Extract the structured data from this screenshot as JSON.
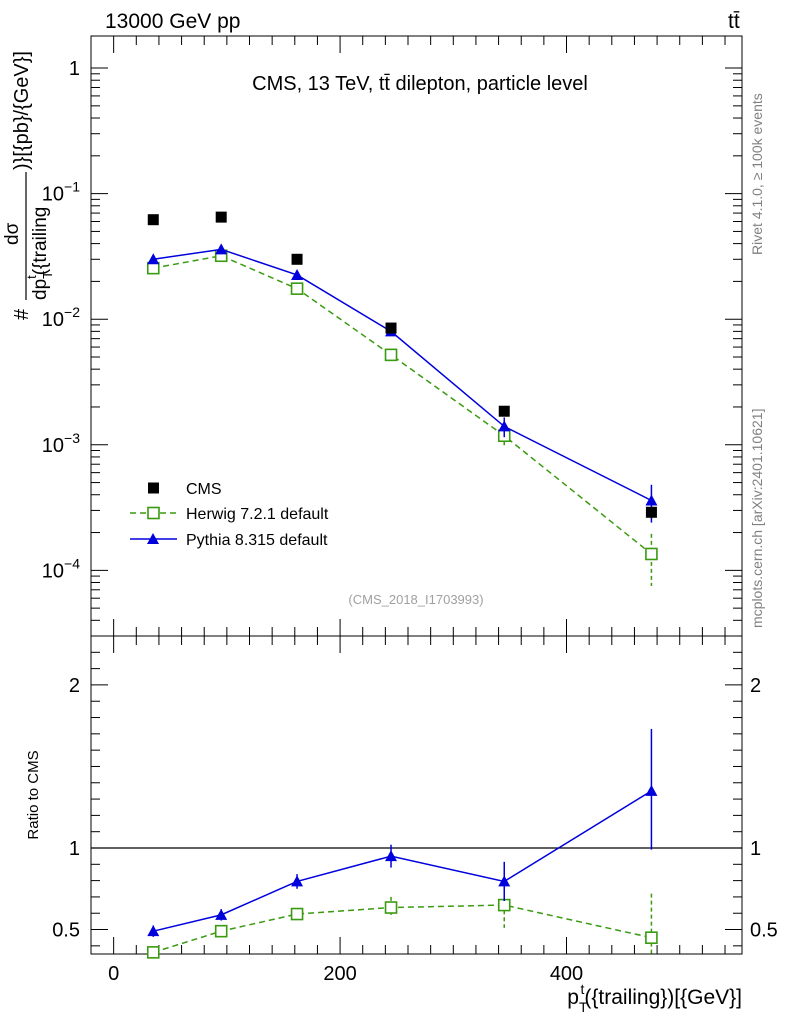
{
  "header": {
    "left": "13000 GeV pp",
    "right": "tt̄"
  },
  "side_text": {
    "rivet": "Rivet 4.1.0, ≥ 100k events",
    "url": "mcplots.cern.ch [arXiv:2401.10621]"
  },
  "colors": {
    "cms": "#000000",
    "herwig": "#3a9a10",
    "pythia": "#0000dd",
    "reference": "#808080"
  },
  "chart_data": [
    {
      "type": "scatter",
      "panel": "main",
      "title": "CMS, 13 TeV, tt̄ dilepton, particle level",
      "reference": "(CMS_2018_I1703993)",
      "ylabel": "#(dσ/dp_T^t({trailing}))[{pb}/{GeV}]",
      "ylabel_parts": {
        "numerator": "dσ",
        "denominator": "dp",
        "denominator_sup": "t",
        "denominator_sub": "T",
        "denominator_tail": "({trailing",
        "prefix": "#",
        "suffix": ")}[{pb}/{GeV}]"
      },
      "xlim": [
        -20,
        555
      ],
      "ylim": [
        3e-05,
        1.8
      ],
      "yscale": "log",
      "y_ticks": [
        {
          "value": 0.0001,
          "base": "10",
          "exp": "−4"
        },
        {
          "value": 0.001,
          "base": "10",
          "exp": "−3"
        },
        {
          "value": 0.01,
          "base": "10",
          "exp": "−2"
        },
        {
          "value": 0.1,
          "base": "10",
          "exp": "−1"
        },
        {
          "value": 1,
          "base": "1",
          "exp": ""
        }
      ],
      "x": [
        35,
        95,
        162,
        245,
        345,
        475
      ],
      "series": [
        {
          "name": "CMS",
          "style": "square",
          "values": [
            0.062,
            0.065,
            0.03,
            0.0085,
            0.00185,
            0.00029
          ],
          "err": [
            0.002,
            0.002,
            0.001,
            0.0003,
            0.0001,
            3e-05
          ]
        },
        {
          "name": "Herwig 7.2.1 default",
          "style": "open-square-dashed",
          "values": [
            0.0255,
            0.032,
            0.0175,
            0.0052,
            0.00118,
            0.000135
          ],
          "err": [
            0.0008,
            0.001,
            0.0006,
            0.0002,
            0.0002,
            6e-05
          ]
        },
        {
          "name": "Pythia 8.315 default",
          "style": "triangle-solid",
          "values": [
            0.03,
            0.036,
            0.0225,
            0.008,
            0.0014,
            0.00036
          ],
          "err": [
            0.001,
            0.001,
            0.0008,
            0.0003,
            0.00025,
            0.00012
          ]
        }
      ],
      "legend": {
        "placement": "bottom-left",
        "entries": [
          "CMS",
          "Herwig 7.2.1 default",
          "Pythia 8.315 default"
        ]
      }
    },
    {
      "type": "line",
      "panel": "ratio",
      "ylabel": "Ratio to CMS",
      "xlabel": "p_T^t({trailing})[{GeV}]",
      "xlabel_parts": {
        "base": "p",
        "sup": "t",
        "sub": "T",
        "tail": "({trailing})[{GeV}]"
      },
      "xlim": [
        -20,
        555
      ],
      "ylim": [
        0.35,
        2.3
      ],
      "y_ticks": [
        "0.5",
        "1",
        "2"
      ],
      "x_ticks": [
        "0",
        "200",
        "400"
      ],
      "x": [
        35,
        95,
        162,
        245,
        345,
        475
      ],
      "series": [
        {
          "name": "Herwig 7.2.1 default",
          "values": [
            0.36,
            0.49,
            0.595,
            0.635,
            0.65,
            0.45
          ],
          "err_low": [
            0.02,
            0.03,
            0.035,
            0.065,
            0.14,
            0.16
          ],
          "err_high": [
            0.02,
            0.03,
            0.035,
            0.065,
            0.14,
            0.27
          ]
        },
        {
          "name": "Pythia 8.315 default",
          "values": [
            0.49,
            0.59,
            0.795,
            0.95,
            0.795,
            1.35
          ],
          "err_low": [
            0.035,
            0.035,
            0.045,
            0.07,
            0.12,
            0.36
          ],
          "err_high": [
            0.035,
            0.035,
            0.045,
            0.07,
            0.12,
            0.38
          ]
        }
      ],
      "reference_line": 1
    }
  ]
}
